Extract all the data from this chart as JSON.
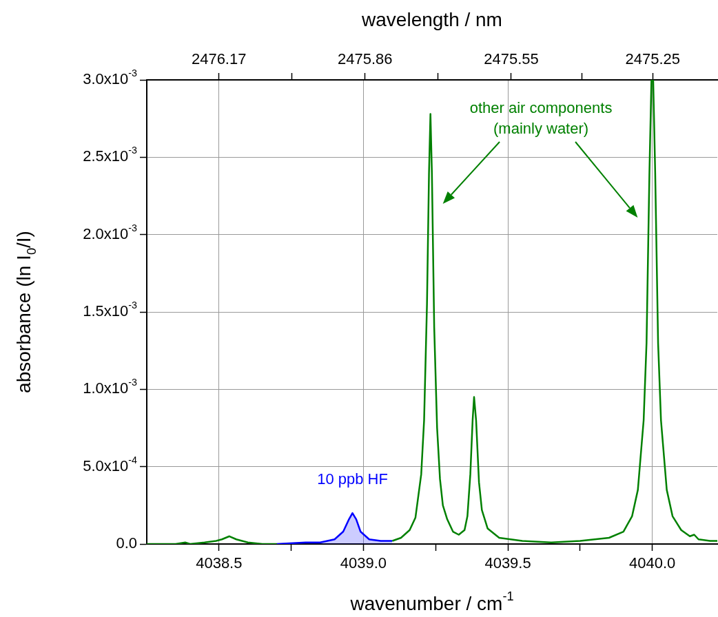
{
  "chart_data": {
    "type": "line",
    "xlabel": "wavenumber / cm$^{-1}$",
    "ylabel": "absorbance (ln I$_{0}$/I)",
    "x2label": "wavelength / nm",
    "xlim": [
      4038.25,
      4040.225
    ],
    "xticks": [
      4038.5,
      {
        "value": 4038.75,
        "label": null
      },
      {
        "value": 4039.0,
        "label": "4039.0"
      },
      {
        "value": 4039.25,
        "label": null
      },
      4039.5,
      {
        "value": 4039.75,
        "label": null
      },
      {
        "value": 4040.0,
        "label": "4040.0"
      }
    ],
    "x2lim": [
      2476.323,
      2475.113
    ],
    "x2ticks": [
      2476.17,
      {
        "value": 2476.015,
        "label": null
      },
      2475.86,
      {
        "value": 2475.705,
        "label": null
      },
      2475.55,
      {
        "value": 2475.4,
        "label": null
      },
      2475.25
    ],
    "ylim": [
      0,
      0.003
    ],
    "yticks": [
      {
        "value": 0,
        "label": "0.0"
      },
      {
        "value": 0.0005,
        "label": "5.0x10$^{-4}$"
      },
      {
        "value": 0.001,
        "label": "1.0x10$^{-3}$"
      },
      {
        "value": 0.0015,
        "label": "1.5x10$^{-3}$"
      },
      {
        "value": 0.002,
        "label": "2.0x10$^{-3}$"
      },
      {
        "value": 0.0025,
        "label": "2.5x10$^{-3}$"
      },
      {
        "value": 0.003,
        "label": "3.0x10$^{-3}$"
      }
    ],
    "grid": true,
    "legend": false,
    "marker": "none",
    "line_style": "solid",
    "series": [
      {
        "name": "other air components (mainly water)",
        "color": "#008000",
        "type": "line",
        "x": [
          4038.25,
          4038.35,
          4038.383,
          4038.4,
          4038.45,
          4038.49,
          4038.51,
          4038.536,
          4038.56,
          4038.6,
          4038.65,
          4038.7,
          4038.9,
          4039.1,
          4039.13,
          4039.16,
          4039.18,
          4039.2,
          4039.21,
          4039.22,
          4039.227,
          4039.232,
          4039.237,
          4039.245,
          4039.255,
          4039.265,
          4039.275,
          4039.29,
          4039.31,
          4039.33,
          4039.35,
          4039.36,
          4039.37,
          4039.378,
          4039.383,
          4039.39,
          4039.4,
          4039.41,
          4039.43,
          4039.47,
          4039.55,
          4039.65,
          4039.75,
          4039.85,
          4039.9,
          4039.93,
          4039.95,
          4039.97,
          4039.98,
          4039.99,
          4039.997,
          4040.003,
          4040.01,
          4040.02,
          4040.03,
          4040.05,
          4040.07,
          4040.1,
          4040.13,
          4040.145,
          4040.16,
          4040.2,
          4040.225
        ],
        "values": [
          0,
          0,
          1e-05,
          0,
          1e-05,
          2e-05,
          3e-05,
          5e-05,
          3e-05,
          1e-05,
          0,
          0,
          null,
          2e-05,
          4e-05,
          9e-05,
          0.00017,
          0.00045,
          0.0008,
          0.00155,
          0.0024,
          0.00278,
          0.0024,
          0.0014,
          0.00075,
          0.00042,
          0.00025,
          0.00016,
          8e-05,
          6e-05,
          9e-05,
          0.00018,
          0.00045,
          0.0008,
          0.00095,
          0.0008,
          0.0004,
          0.00022,
          0.0001,
          4e-05,
          2e-05,
          1e-05,
          2e-05,
          4e-05,
          8e-05,
          0.00018,
          0.00035,
          0.0008,
          0.0013,
          0.0024,
          0.003,
          0.003,
          0.0024,
          0.0013,
          0.0008,
          0.00035,
          0.00018,
          9e-05,
          5e-05,
          6e-05,
          3e-05,
          2e-05,
          2e-05
        ]
      },
      {
        "name": "10 ppb HF",
        "color": "#0000ff",
        "type": "area",
        "x": [
          4038.7,
          4038.8,
          4038.85,
          4038.9,
          4038.93,
          4038.95,
          4038.962,
          4038.975,
          4038.99,
          4039.02,
          4039.06,
          4039.1
        ],
        "values": [
          0,
          1e-05,
          1e-05,
          3e-05,
          8e-05,
          0.00016,
          0.0002,
          0.00016,
          8e-05,
          3e-05,
          2e-05,
          2e-05
        ]
      }
    ]
  }
}
